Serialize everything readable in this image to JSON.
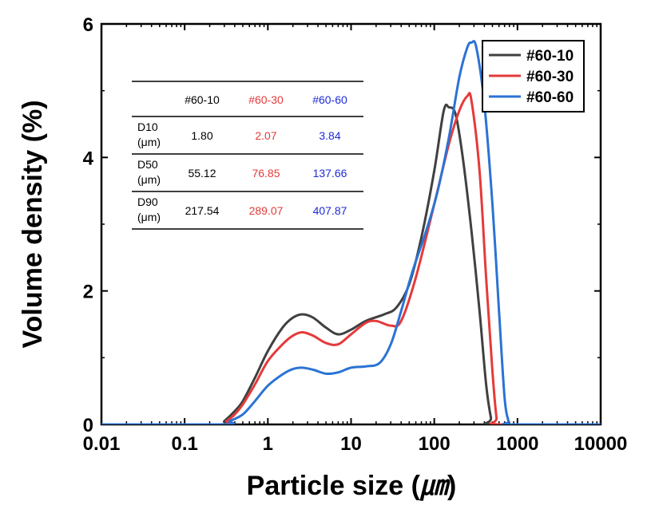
{
  "chart_data": {
    "type": "line",
    "xscale": "log",
    "xlabel": "Particle size (",
    "xlabel_unit": "㎛",
    "xlabel_close": ")",
    "ylabel": "Volume density (%)",
    "xlim": [
      0.01,
      10000
    ],
    "ylim": [
      0,
      6
    ],
    "x_ticks": [
      0.01,
      0.1,
      1,
      10,
      100,
      1000,
      10000
    ],
    "x_tick_labels": [
      "0.01",
      "0.1",
      "1",
      "10",
      "100",
      "1000",
      "10000"
    ],
    "y_ticks": [
      0,
      2,
      4,
      6
    ],
    "y_tick_labels": [
      "0",
      "2",
      "4",
      "6"
    ],
    "legend_position": "top-right",
    "series": [
      {
        "name": "#60-10",
        "color": "#404040",
        "points": [
          [
            0.01,
            0
          ],
          [
            0.26,
            0
          ],
          [
            0.3,
            0.05
          ],
          [
            0.4,
            0.2
          ],
          [
            0.5,
            0.35
          ],
          [
            0.7,
            0.7
          ],
          [
            1,
            1.1
          ],
          [
            1.5,
            1.45
          ],
          [
            2,
            1.6
          ],
          [
            2.6,
            1.65
          ],
          [
            3.5,
            1.6
          ],
          [
            5,
            1.45
          ],
          [
            7,
            1.35
          ],
          [
            10,
            1.42
          ],
          [
            15,
            1.55
          ],
          [
            25,
            1.65
          ],
          [
            35,
            1.75
          ],
          [
            50,
            2.1
          ],
          [
            70,
            2.8
          ],
          [
            100,
            3.8
          ],
          [
            130,
            4.7
          ],
          [
            150,
            4.75
          ],
          [
            180,
            4.65
          ],
          [
            220,
            4.0
          ],
          [
            280,
            2.9
          ],
          [
            350,
            1.7
          ],
          [
            420,
            0.6
          ],
          [
            480,
            0.1
          ],
          [
            520,
            0
          ],
          [
            10000,
            0
          ]
        ]
      },
      {
        "name": "#60-30",
        "color": "#e53a3a",
        "points": [
          [
            0.01,
            0
          ],
          [
            0.27,
            0
          ],
          [
            0.32,
            0.05
          ],
          [
            0.4,
            0.15
          ],
          [
            0.5,
            0.3
          ],
          [
            0.7,
            0.6
          ],
          [
            1,
            0.95
          ],
          [
            1.5,
            1.2
          ],
          [
            2,
            1.33
          ],
          [
            2.6,
            1.38
          ],
          [
            3.5,
            1.33
          ],
          [
            5,
            1.22
          ],
          [
            7,
            1.2
          ],
          [
            10,
            1.35
          ],
          [
            15,
            1.52
          ],
          [
            20,
            1.55
          ],
          [
            30,
            1.48
          ],
          [
            40,
            1.55
          ],
          [
            60,
            2.2
          ],
          [
            100,
            3.3
          ],
          [
            150,
            4.2
          ],
          [
            200,
            4.7
          ],
          [
            250,
            4.92
          ],
          [
            280,
            4.85
          ],
          [
            350,
            3.8
          ],
          [
            420,
            2.2
          ],
          [
            500,
            0.8
          ],
          [
            560,
            0.1
          ],
          [
            600,
            0
          ],
          [
            10000,
            0
          ]
        ]
      },
      {
        "name": "#60-60",
        "color": "#2b73d4",
        "points": [
          [
            0.01,
            0
          ],
          [
            0.29,
            0
          ],
          [
            0.35,
            0.05
          ],
          [
            0.5,
            0.15
          ],
          [
            0.7,
            0.35
          ],
          [
            1,
            0.58
          ],
          [
            1.5,
            0.75
          ],
          [
            2,
            0.83
          ],
          [
            2.6,
            0.85
          ],
          [
            3.5,
            0.82
          ],
          [
            5,
            0.76
          ],
          [
            7,
            0.78
          ],
          [
            10,
            0.85
          ],
          [
            15,
            0.87
          ],
          [
            22,
            0.92
          ],
          [
            30,
            1.2
          ],
          [
            40,
            1.7
          ],
          [
            55,
            2.3
          ],
          [
            80,
            2.9
          ],
          [
            110,
            3.5
          ],
          [
            150,
            4.3
          ],
          [
            200,
            5.2
          ],
          [
            250,
            5.65
          ],
          [
            280,
            5.72
          ],
          [
            320,
            5.65
          ],
          [
            400,
            4.8
          ],
          [
            500,
            3.3
          ],
          [
            600,
            1.7
          ],
          [
            700,
            0.4
          ],
          [
            780,
            0.05
          ],
          [
            820,
            0
          ],
          [
            10000,
            0
          ]
        ]
      }
    ],
    "inset_table": {
      "columns": [
        "",
        "#60-10",
        "#60-30",
        "#60-60"
      ],
      "column_colors": [
        "#000000",
        "#000000",
        "#e53a3a",
        "#1f2bd6"
      ],
      "rows": [
        {
          "label": [
            "D10",
            "(μm)"
          ],
          "values": [
            "1.80",
            "2.07",
            "3.84"
          ]
        },
        {
          "label": [
            "D50",
            "(μm)"
          ],
          "values": [
            "55.12",
            "76.85",
            "137.66"
          ]
        },
        {
          "label": [
            "D90",
            "(μm)"
          ],
          "values": [
            "217.54",
            "289.07",
            "407.87"
          ]
        }
      ]
    }
  }
}
